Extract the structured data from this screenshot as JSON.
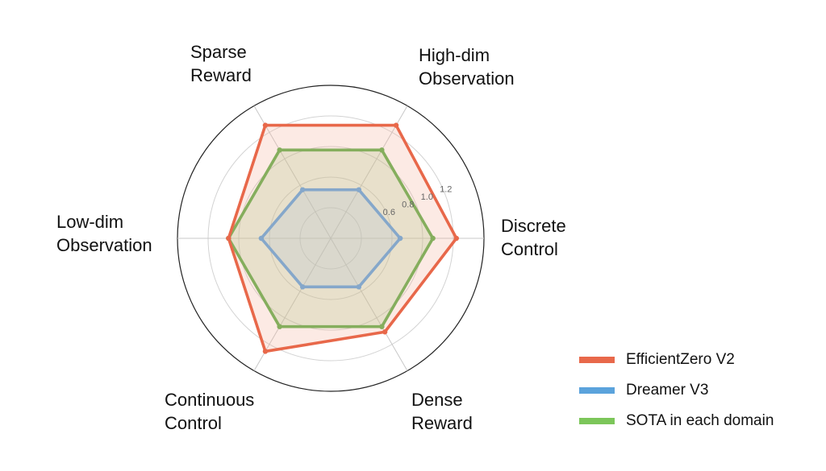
{
  "chart_data": {
    "type": "radar",
    "title": "",
    "axes": [
      "Discrete Control",
      "High-dim Observation",
      "Sparse Reward",
      "Low-dim Observation",
      "Continuous Control",
      "Dense Reward"
    ],
    "axis_label_lines": [
      [
        "Discrete",
        "Control"
      ],
      [
        "High-dim",
        "Observation"
      ],
      [
        "Sparse",
        "Reward"
      ],
      [
        "Low-dim",
        "Observation"
      ],
      [
        "Continuous",
        "Control"
      ],
      [
        "Dense",
        "Reward"
      ]
    ],
    "radial_ticks": [
      "0.6",
      "0.8",
      "1.0",
      "1.2"
    ],
    "series": [
      {
        "name": "SOTA in each domain",
        "color": "#5aac44",
        "fill_color": "#9ccc84",
        "values": [
          1.0,
          1.0,
          1.0,
          1.0,
          1.0,
          1.0
        ]
      },
      {
        "name": "Dreamer V3",
        "color": "#5ba3dc",
        "fill_color": "#9fc8e6",
        "values": [
          0.68,
          0.55,
          0.55,
          0.68,
          0.55,
          0.55
        ]
      },
      {
        "name": "EfficientZero V2",
        "color": "#e8684a",
        "fill_color": "#f3b49f",
        "values": [
          1.23,
          1.28,
          1.28,
          1.0,
          1.28,
          1.06
        ]
      }
    ],
    "legend": {
      "position": "bottom-right",
      "entries": [
        {
          "label": "EfficientZero V2",
          "color": "#e8684a"
        },
        {
          "label": "Dreamer V3",
          "color": "#5ba3dc"
        },
        {
          "label": "SOTA in each domain",
          "color": "#7cc65a"
        }
      ]
    },
    "grid": true
  }
}
